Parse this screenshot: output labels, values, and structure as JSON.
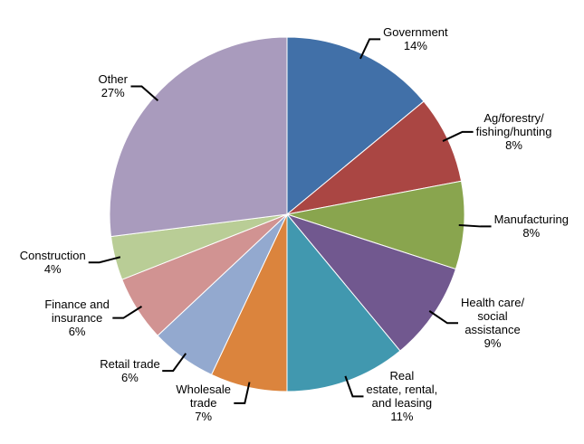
{
  "chart_data": {
    "type": "pie",
    "categories": [
      "Government",
      "Ag/forestry/\nfishing/hunting",
      "Manufacturing",
      "Health care/\nsocial\nassistance",
      "Real\nestate, rental,\nand leasing",
      "Wholesale\ntrade",
      "Retail trade",
      "Finance and\ninsurance",
      "Construction",
      "Other"
    ],
    "values": [
      14,
      8,
      8,
      9,
      11,
      7,
      6,
      6,
      4,
      27
    ],
    "value_labels": [
      "14%",
      "8%",
      "8%",
      "9%",
      "11%",
      "7%",
      "6%",
      "6%",
      "4%",
      "27%"
    ],
    "colors": [
      "#4170a8",
      "#aa4643",
      "#89a54e",
      "#71588f",
      "#4198af",
      "#db843d",
      "#93a9cf",
      "#d19392",
      "#b9cd96",
      "#a99bbd"
    ]
  }
}
